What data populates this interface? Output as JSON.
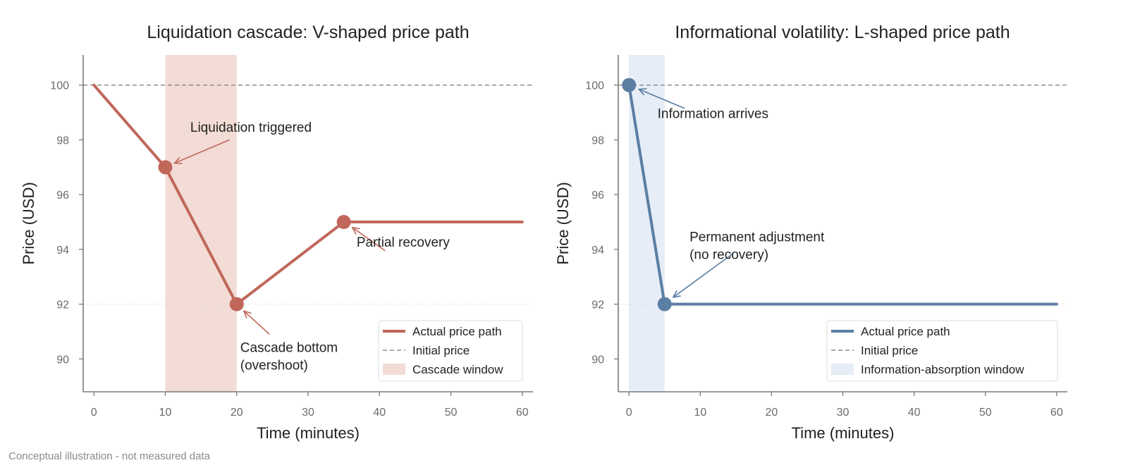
{
  "footnote": "Conceptual illustration - not measured data",
  "chart_data": [
    {
      "type": "line",
      "title": "Liquidation cascade: V-shaped price path",
      "xlabel": "Time (minutes)",
      "ylabel": "Price (USD)",
      "xlim": [
        -1.5,
        61.5
      ],
      "ylim": [
        88.8,
        101.1
      ],
      "xticks": [
        0,
        10,
        20,
        30,
        40,
        50,
        60
      ],
      "yticks": [
        90,
        92,
        94,
        96,
        98,
        100
      ],
      "color": "#c0675a",
      "band_color": "#f2dcd5",
      "series": [
        {
          "name": "Actual price path",
          "x": [
            0,
            10,
            20,
            35,
            60
          ],
          "y": [
            100,
            97,
            92,
            95,
            95
          ]
        }
      ],
      "initial_price": 100,
      "reference_dotted": 92,
      "window": {
        "label": "Cascade window",
        "x0": 10,
        "x1": 20
      },
      "markers": [
        [
          10,
          97
        ],
        [
          20,
          92
        ],
        [
          35,
          95
        ]
      ],
      "annotations": [
        {
          "lines": [
            "Liquidation triggered"
          ],
          "text_at": [
            13.5,
            98.3
          ],
          "arrow_from": [
            19,
            98.0
          ],
          "arrow_to": [
            11.3,
            97.15
          ]
        },
        {
          "lines": [
            "Partial recovery"
          ],
          "text_at": [
            36.8,
            94.1
          ],
          "arrow_from": [
            40.8,
            93.95
          ],
          "arrow_to": [
            36.2,
            94.8
          ]
        },
        {
          "lines": [
            "Cascade bottom",
            "(overshoot)"
          ],
          "text_at": [
            20.5,
            90.25
          ],
          "arrow_from": [
            24.6,
            90.9
          ],
          "arrow_to": [
            21.0,
            91.75
          ]
        }
      ],
      "legend": {
        "position": "lower-right",
        "items": [
          "Actual price path",
          "Initial price",
          "Cascade window"
        ]
      }
    },
    {
      "type": "line",
      "title": "Informational volatility: L-shaped price path",
      "xlabel": "Time (minutes)",
      "ylabel": "Price (USD)",
      "xlim": [
        -1.5,
        61.5
      ],
      "ylim": [
        88.8,
        101.1
      ],
      "xticks": [
        0,
        10,
        20,
        30,
        40,
        50,
        60
      ],
      "yticks": [
        90,
        92,
        94,
        96,
        98,
        100
      ],
      "color": "#5b7ea3",
      "band_color": "#e6edf6",
      "series": [
        {
          "name": "Actual price path",
          "x": [
            0,
            5,
            60
          ],
          "y": [
            100,
            92,
            92
          ]
        }
      ],
      "initial_price": 100,
      "reference_dotted": 92,
      "window": {
        "label": "Information-absorption window",
        "x0": 0,
        "x1": 5
      },
      "markers": [
        [
          0,
          100
        ],
        [
          5,
          92
        ]
      ],
      "annotations": [
        {
          "lines": [
            "Information arrives"
          ],
          "text_at": [
            4.0,
            98.8
          ],
          "arrow_from": [
            7.8,
            99.15
          ],
          "arrow_to": [
            1.4,
            99.85
          ]
        },
        {
          "lines": [
            "Permanent adjustment",
            "(no recovery)"
          ],
          "text_at": [
            8.5,
            94.3
          ],
          "arrow_from": [
            14.6,
            93.85
          ],
          "arrow_to": [
            6.2,
            92.25
          ]
        }
      ],
      "legend": {
        "position": "lower-right",
        "items": [
          "Actual price path",
          "Initial price",
          "Information-absorption window"
        ]
      }
    }
  ]
}
